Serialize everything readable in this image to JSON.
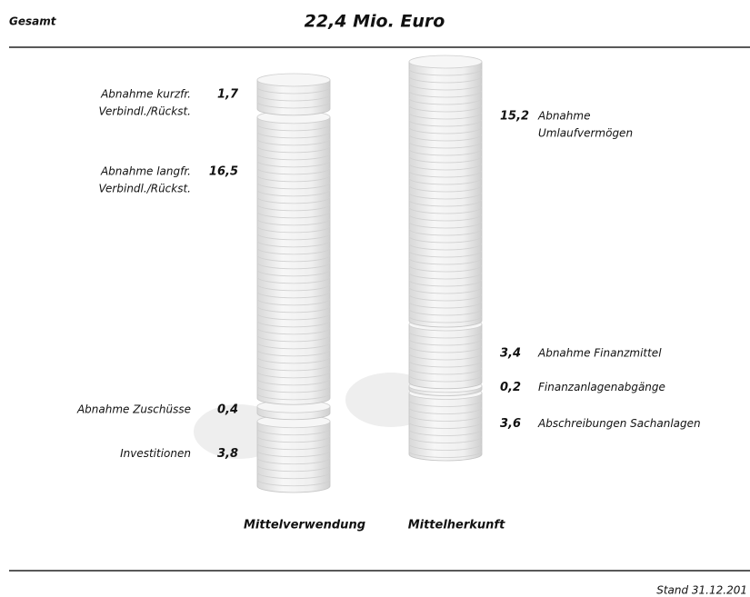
{
  "chart_data": {
    "type": "coinstack",
    "label": "Gesamt",
    "title": "22,4 Mio. Euro",
    "footer": "Stand 31.12.201",
    "stacks": [
      {
        "name": "Mittelverwendung",
        "label_side": "left",
        "segments": [
          {
            "label": [
              "Abnahme kurzfr.",
              "Verbindl./Rückst."
            ],
            "value": 1.7,
            "value_label": "1,7"
          },
          {
            "label": [
              "Abnahme langfr.",
              "Verbindl./Rückst."
            ],
            "value": 16.5,
            "value_label": "16,5"
          },
          {
            "label": [
              "Abnahme Zuschüsse"
            ],
            "value": 0.4,
            "value_label": "0,4"
          },
          {
            "label": [
              "Investitionen"
            ],
            "value": 3.8,
            "value_label": "3,8"
          }
        ]
      },
      {
        "name": "Mittelherkunft",
        "label_side": "right",
        "segments": [
          {
            "label": [
              "Abnahme",
              "Umlaufvermögen"
            ],
            "value": 15.2,
            "value_label": "15,2"
          },
          {
            "label": [
              "Abnahme Finanzmittel"
            ],
            "value": 3.4,
            "value_label": "3,4"
          },
          {
            "label": [
              "Finanzanlagenabgänge"
            ],
            "value": 0.2,
            "value_label": "0,2"
          },
          {
            "label": [
              "Abschreibungen Sachanlagen"
            ],
            "value": 3.6,
            "value_label": "3,6"
          }
        ]
      }
    ]
  }
}
